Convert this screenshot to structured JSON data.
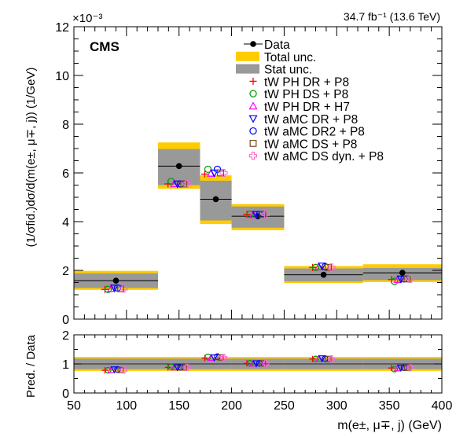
{
  "chart_data": {
    "type": "scatter",
    "title": "",
    "lumi_label": "34.7 fb⁻¹ (13.6 TeV)",
    "experiment_label": "CMS",
    "exponent_label": "×10⁻³",
    "ylabel": "(1/σfid.)dσ/d(m(e±, μ∓, j)) (1/GeV)",
    "ratio_ylabel": "Pred. / Data",
    "xlabel": "m(e±, μ∓, j) (GeV)",
    "xlim": [
      50,
      400
    ],
    "ylim": [
      0,
      12
    ],
    "ratio_ylim": [
      0,
      2
    ],
    "x_ticks": [
      "50",
      "100",
      "150",
      "200",
      "250",
      "300",
      "350",
      "400"
    ],
    "y_ticks": [
      "0",
      "2",
      "4",
      "6",
      "8",
      "10",
      "12"
    ],
    "ratio_y_ticks": [
      "0",
      "1",
      "2"
    ],
    "grid": false,
    "legend_position": "top-right",
    "bins": [
      {
        "low": 50,
        "high": 130
      },
      {
        "low": 130,
        "high": 170
      },
      {
        "low": 170,
        "high": 200
      },
      {
        "low": 200,
        "high": 250
      },
      {
        "low": 250,
        "high": 325
      },
      {
        "low": 325,
        "high": 400
      }
    ],
    "data": {
      "name": "Data",
      "x": [
        90,
        150,
        185,
        225,
        287.5,
        362.5
      ],
      "values": [
        1.58,
        6.28,
        4.92,
        4.22,
        1.82,
        1.9
      ]
    },
    "total_unc": {
      "name": "Total unc.",
      "color": "#ffcc00",
      "low": [
        1.2,
        5.35,
        3.9,
        3.65,
        1.48,
        1.52
      ],
      "high": [
        1.98,
        7.25,
        5.9,
        4.72,
        2.18,
        2.25
      ]
    },
    "stat_unc": {
      "name": "Stat unc.",
      "color": "#999999",
      "low": [
        1.28,
        5.5,
        4.05,
        3.75,
        1.55,
        1.6
      ],
      "high": [
        1.88,
        6.98,
        5.68,
        4.62,
        2.08,
        2.1
      ]
    },
    "ratio_total_unc": {
      "low": 0.76,
      "high": 1.24
    },
    "ratio_stat_unc": {
      "low": 0.82,
      "high": 1.18
    },
    "series": [
      {
        "name": "tW PH DR + P8",
        "marker": "plus",
        "color": "#ff0000",
        "values": [
          1.22,
          5.55,
          5.95,
          4.3,
          2.12,
          1.62
        ]
      },
      {
        "name": "tW PH DS + P8",
        "marker": "circle",
        "color": "#009900",
        "values": [
          1.22,
          5.65,
          6.15,
          4.3,
          2.12,
          1.55
        ]
      },
      {
        "name": "tW PH DR + H7",
        "marker": "triangle-up",
        "color": "#ff00ff",
        "values": [
          1.25,
          5.55,
          5.98,
          4.28,
          2.15,
          1.62
        ]
      },
      {
        "name": "tW aMC DR + P8",
        "marker": "triangle-down",
        "color": "#0000ff",
        "values": [
          1.28,
          5.55,
          6.0,
          4.3,
          2.18,
          1.65
        ]
      },
      {
        "name": "tW aMC DR2 + P8",
        "marker": "circle",
        "color": "#0000ff",
        "values": [
          1.28,
          5.55,
          6.15,
          4.3,
          2.15,
          1.65
        ]
      },
      {
        "name": "tW aMC DS + P8",
        "marker": "square",
        "color": "#7a4b22",
        "values": [
          1.25,
          5.55,
          6.0,
          4.3,
          2.12,
          1.65
        ]
      },
      {
        "name": "tW aMC DS dyn. + P8",
        "marker": "cross",
        "color": "#ff66cc",
        "values": [
          1.25,
          5.55,
          6.0,
          4.3,
          2.12,
          1.65
        ]
      }
    ],
    "ratios": [
      {
        "name": "tW PH DR + P8",
        "values": [
          0.78,
          0.88,
          1.2,
          1.02,
          1.17,
          0.86
        ]
      },
      {
        "name": "tW PH DS + P8",
        "values": [
          0.78,
          0.9,
          1.24,
          1.02,
          1.17,
          0.82
        ]
      },
      {
        "name": "tW PH DR + H7",
        "values": [
          0.79,
          0.88,
          1.21,
          1.01,
          1.18,
          0.85
        ]
      },
      {
        "name": "tW aMC DR + P8",
        "values": [
          0.81,
          0.88,
          1.22,
          1.02,
          1.19,
          0.87
        ]
      },
      {
        "name": "tW aMC DR2 + P8",
        "values": [
          0.81,
          0.88,
          1.25,
          1.02,
          1.18,
          0.87
        ]
      },
      {
        "name": "tW aMC DS + P8",
        "values": [
          0.79,
          0.88,
          1.22,
          1.02,
          1.17,
          0.87
        ]
      },
      {
        "name": "tW aMC DS dyn. + P8",
        "values": [
          0.79,
          0.88,
          1.22,
          1.02,
          1.17,
          0.87
        ]
      }
    ]
  }
}
